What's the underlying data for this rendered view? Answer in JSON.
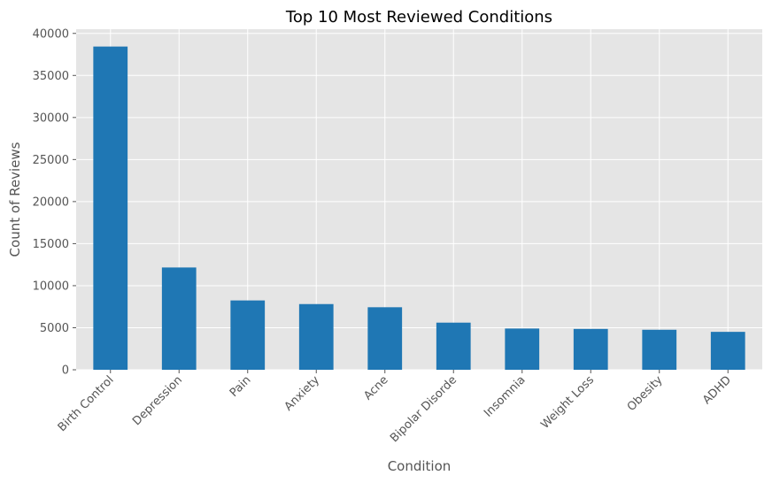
{
  "chart_data": {
    "type": "bar",
    "title": "Top 10 Most Reviewed Conditions",
    "xlabel": "Condition",
    "ylabel": "Count of Reviews",
    "categories": [
      "Birth Control",
      "Depression",
      "Pain",
      "Anxiety",
      "Acne",
      "Bipolar Disorde",
      "Insomnia",
      "Weight Loss",
      "Obesity",
      "ADHD"
    ],
    "values": [
      38436,
      12164,
      8245,
      7812,
      7435,
      5604,
      4904,
      4857,
      4757,
      4509
    ],
    "ylim": [
      0,
      40500
    ],
    "yticks": [
      0,
      5000,
      10000,
      15000,
      20000,
      25000,
      30000,
      35000,
      40000
    ],
    "grid": true,
    "bar_color": "#1f77b4",
    "plot_background": "#e5e5e5",
    "grid_color": "#ffffff"
  }
}
